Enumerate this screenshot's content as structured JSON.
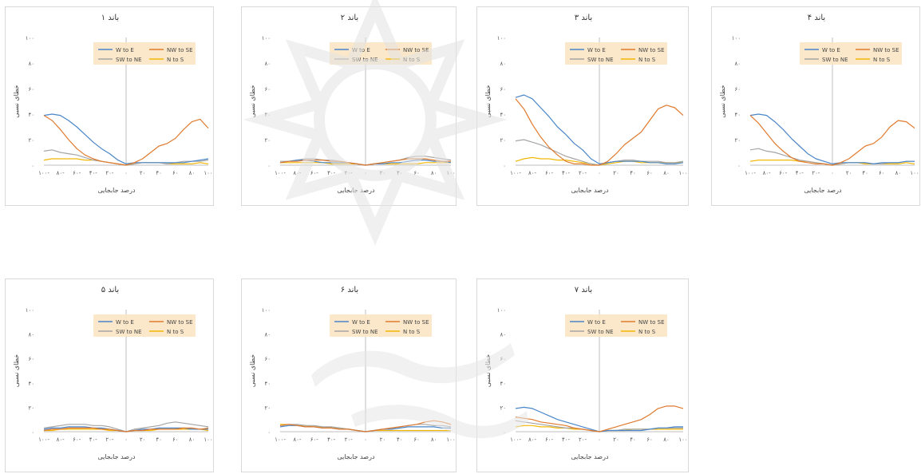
{
  "chart_data": [
    {
      "type": "line",
      "title": "باند ۱",
      "xlabel": "درصد جابجایی",
      "ylabel": "خطای نسبی",
      "x_ticks": [
        "۱۰۰-",
        "۸۰-",
        "۶۰-",
        "۴۰-",
        "۲۰-",
        "۰",
        "۲۰",
        "۴۰",
        "۶۰",
        "۸۰",
        "۱۰۰"
      ],
      "y_ticks": [
        "۰",
        "۲۰",
        "۴۰",
        "۶۰",
        "۸۰",
        "۱۰۰"
      ],
      "xlim": [
        -100,
        100
      ],
      "ylim": [
        0,
        100
      ],
      "x": [
        -100,
        -90,
        -80,
        -70,
        -60,
        -50,
        -40,
        -30,
        -20,
        -10,
        0,
        10,
        20,
        30,
        40,
        50,
        60,
        70,
        80,
        90,
        100
      ],
      "series": [
        {
          "name": "W to E",
          "color": "#4a86c8",
          "values": [
            39,
            40,
            39,
            35,
            30,
            24,
            18,
            13,
            9,
            4,
            1,
            2,
            2,
            2,
            2,
            2,
            2,
            2,
            3,
            4,
            5
          ]
        },
        {
          "name": "NW to SE",
          "color": "#e07a2e",
          "values": [
            39,
            35,
            28,
            20,
            13,
            8,
            5,
            3,
            2,
            1,
            0,
            2,
            5,
            10,
            15,
            17,
            21,
            28,
            34,
            36,
            29
          ]
        },
        {
          "name": "SW to NE",
          "color": "#a5a5a5",
          "values": [
            11,
            12,
            10,
            9,
            8,
            6,
            4,
            3,
            2,
            1,
            0,
            1,
            2,
            2,
            2,
            1,
            2,
            3,
            3,
            3,
            4
          ]
        },
        {
          "name": "N to S",
          "color": "#f2b705",
          "values": [
            4,
            5,
            5,
            5,
            5,
            4,
            4,
            3,
            2,
            1,
            0,
            1,
            2,
            2,
            2,
            1,
            1,
            1,
            1,
            2,
            1
          ]
        }
      ]
    },
    {
      "type": "line",
      "title": "باند ۲",
      "xlabel": "درصد جابجایی",
      "ylabel": "خطای نسبی",
      "x_ticks": [
        "۱۰۰-",
        "۸۰-",
        "۶۰-",
        "۴۰-",
        "۲۰-",
        "۰",
        "۲۰",
        "۴۰",
        "۶۰",
        "۸۰",
        "۱۰۰"
      ],
      "y_ticks": [
        "۰",
        "۲۰",
        "۴۰",
        "۶۰",
        "۸۰",
        "۱۰۰"
      ],
      "xlim": [
        -100,
        100
      ],
      "ylim": [
        0,
        100
      ],
      "x": [
        -100,
        -90,
        -80,
        -70,
        -60,
        -50,
        -40,
        -30,
        -20,
        -10,
        0,
        10,
        20,
        30,
        40,
        50,
        60,
        70,
        80,
        90,
        100
      ],
      "series": [
        {
          "name": "W to E",
          "color": "#4a86c8",
          "values": [
            2,
            3,
            4,
            4,
            3,
            2,
            2,
            2,
            2,
            1,
            0,
            1,
            1,
            2,
            2,
            3,
            4,
            4,
            3,
            3,
            2
          ]
        },
        {
          "name": "NW to SE",
          "color": "#e07a2e",
          "values": [
            2,
            3,
            3,
            4,
            4,
            4,
            3,
            3,
            2,
            1,
            0,
            1,
            2,
            3,
            4,
            5,
            5,
            5,
            4,
            3,
            3
          ]
        },
        {
          "name": "SW to NE",
          "color": "#a5a5a5",
          "values": [
            3,
            3,
            4,
            5,
            5,
            4,
            4,
            3,
            2,
            1,
            0,
            1,
            2,
            3,
            4,
            6,
            7,
            7,
            6,
            5,
            4
          ]
        },
        {
          "name": "N to S",
          "color": "#f2b705",
          "values": [
            2,
            2,
            2,
            2,
            2,
            2,
            1,
            1,
            1,
            1,
            0,
            1,
            1,
            1,
            1,
            1,
            1,
            2,
            2,
            2,
            2
          ]
        }
      ]
    },
    {
      "type": "line",
      "title": "باند ۳",
      "xlabel": "درصد جابجایی",
      "ylabel": "خطای نسبی",
      "x_ticks": [
        "۱۰۰-",
        "۸۰-",
        "۶۰-",
        "۴۰-",
        "۲۰-",
        "۰",
        "۲۰",
        "۴۰",
        "۶۰",
        "۸۰",
        "۱۰۰"
      ],
      "y_ticks": [
        "۰",
        "۲۰",
        "۴۰",
        "۶۰",
        "۸۰",
        "۱۰۰"
      ],
      "xlim": [
        -100,
        100
      ],
      "ylim": [
        0,
        100
      ],
      "x": [
        -100,
        -90,
        -80,
        -70,
        -60,
        -50,
        -40,
        -30,
        -20,
        -10,
        0,
        10,
        20,
        30,
        40,
        50,
        60,
        70,
        80,
        90,
        100
      ],
      "series": [
        {
          "name": "W to E",
          "color": "#4a86c8",
          "values": [
            53,
            55,
            52,
            45,
            38,
            30,
            24,
            17,
            12,
            5,
            1,
            2,
            3,
            3,
            3,
            3,
            2,
            2,
            1,
            1,
            2
          ]
        },
        {
          "name": "NW to SE",
          "color": "#e07a2e",
          "values": [
            52,
            44,
            32,
            22,
            14,
            8,
            3,
            1,
            1,
            0,
            0,
            3,
            9,
            16,
            21,
            26,
            35,
            44,
            47,
            45,
            39
          ]
        },
        {
          "name": "SW to NE",
          "color": "#a5a5a5",
          "values": [
            19,
            20,
            18,
            16,
            13,
            10,
            7,
            5,
            3,
            1,
            0,
            2,
            3,
            4,
            4,
            3,
            3,
            3,
            2,
            2,
            3
          ]
        },
        {
          "name": "N to S",
          "color": "#f2b705",
          "values": [
            3,
            5,
            6,
            5,
            5,
            4,
            4,
            3,
            2,
            1,
            0,
            1,
            2,
            3,
            3,
            2,
            2,
            2,
            2,
            2,
            2
          ]
        }
      ]
    },
    {
      "type": "line",
      "title": "باند ۴",
      "xlabel": "درصد جابجایی",
      "ylabel": "خطای نسبی",
      "x_ticks": [
        "۱۰۰-",
        "۸۰-",
        "۶۰-",
        "۴۰-",
        "۲۰-",
        "۰",
        "۲۰",
        "۴۰",
        "۶۰",
        "۸۰",
        "۱۰۰"
      ],
      "y_ticks": [
        "۰",
        "۲۰",
        "۴۰",
        "۶۰",
        "۸۰",
        "۱۰۰"
      ],
      "xlim": [
        -100,
        100
      ],
      "ylim": [
        0,
        100
      ],
      "x": [
        -100,
        -90,
        -80,
        -70,
        -60,
        -50,
        -40,
        -30,
        -20,
        -10,
        0,
        10,
        20,
        30,
        40,
        50,
        60,
        70,
        80,
        90,
        100
      ],
      "series": [
        {
          "name": "W to E",
          "color": "#4a86c8",
          "values": [
            39,
            40,
            39,
            34,
            28,
            21,
            15,
            9,
            5,
            3,
            1,
            2,
            2,
            2,
            2,
            1,
            2,
            2,
            2,
            3,
            3
          ]
        },
        {
          "name": "NW to SE",
          "color": "#e07a2e",
          "values": [
            39,
            33,
            25,
            17,
            11,
            6,
            3,
            2,
            1,
            1,
            0,
            2,
            5,
            10,
            15,
            17,
            22,
            30,
            35,
            34,
            29
          ]
        },
        {
          "name": "SW to NE",
          "color": "#a5a5a5",
          "values": [
            12,
            13,
            11,
            10,
            8,
            6,
            4,
            3,
            2,
            1,
            0,
            1,
            2,
            2,
            2,
            1,
            1,
            2,
            2,
            3,
            3
          ]
        },
        {
          "name": "N to S",
          "color": "#f2b705",
          "values": [
            3,
            4,
            4,
            4,
            4,
            4,
            3,
            3,
            2,
            1,
            0,
            1,
            2,
            2,
            1,
            1,
            1,
            1,
            1,
            2,
            1
          ]
        }
      ]
    },
    {
      "type": "line",
      "title": "باند ۵",
      "xlabel": "درصد جابجایی",
      "ylabel": "خطای نسبی",
      "x_ticks": [
        "۱۰۰-",
        "۸۰-",
        "۶۰-",
        "۴۰-",
        "۲۰-",
        "۰",
        "۲۰",
        "۴۰",
        "۶۰",
        "۸۰",
        "۱۰۰"
      ],
      "y_ticks": [
        "۰",
        "۲۰",
        "۴۰",
        "۶۰",
        "۸۰",
        "۱۰۰"
      ],
      "xlim": [
        -100,
        100
      ],
      "ylim": [
        0,
        100
      ],
      "x": [
        -100,
        -90,
        -80,
        -70,
        -60,
        -50,
        -40,
        -30,
        -20,
        -10,
        0,
        10,
        20,
        30,
        40,
        50,
        60,
        70,
        80,
        90,
        100
      ],
      "series": [
        {
          "name": "W to E",
          "color": "#4a86c8",
          "values": [
            2,
            3,
            3,
            4,
            4,
            4,
            3,
            3,
            2,
            1,
            0,
            1,
            2,
            2,
            3,
            3,
            3,
            3,
            2,
            2,
            2
          ]
        },
        {
          "name": "NW to SE",
          "color": "#e07a2e",
          "values": [
            1,
            2,
            2,
            3,
            3,
            3,
            3,
            2,
            2,
            1,
            0,
            1,
            1,
            2,
            2,
            2,
            2,
            3,
            3,
            2,
            3
          ]
        },
        {
          "name": "SW to NE",
          "color": "#a5a5a5",
          "values": [
            3,
            4,
            5,
            6,
            6,
            6,
            5,
            5,
            4,
            2,
            0,
            2,
            3,
            4,
            5,
            7,
            8,
            7,
            6,
            5,
            4
          ]
        },
        {
          "name": "N to S",
          "color": "#f2b705",
          "values": [
            1,
            1,
            2,
            2,
            2,
            2,
            2,
            2,
            1,
            1,
            0,
            1,
            1,
            1,
            2,
            2,
            2,
            2,
            2,
            2,
            1
          ]
        }
      ]
    },
    {
      "type": "line",
      "title": "باند ۶",
      "xlabel": "درصد جابجایی",
      "ylabel": "خطای نسبی",
      "x_ticks": [
        "۱۰۰-",
        "۸۰-",
        "۶۰-",
        "۴۰-",
        "۲۰-",
        "۰",
        "۲۰",
        "۴۰",
        "۶۰",
        "۸۰",
        "۱۰۰"
      ],
      "y_ticks": [
        "۰",
        "۲۰",
        "۴۰",
        "۶۰",
        "۸۰",
        "۱۰۰"
      ],
      "xlim": [
        -100,
        100
      ],
      "ylim": [
        0,
        100
      ],
      "x": [
        -100,
        -90,
        -80,
        -70,
        -60,
        -50,
        -40,
        -30,
        -20,
        -10,
        0,
        10,
        20,
        30,
        40,
        50,
        60,
        70,
        80,
        90,
        100
      ],
      "series": [
        {
          "name": "W to E",
          "color": "#4a86c8",
          "values": [
            4,
            5,
            5,
            4,
            4,
            3,
            3,
            2,
            2,
            1,
            0,
            1,
            2,
            2,
            3,
            4,
            4,
            4,
            4,
            3,
            3
          ]
        },
        {
          "name": "NW to SE",
          "color": "#e07a2e",
          "values": [
            5,
            6,
            5,
            4,
            4,
            3,
            3,
            2,
            2,
            1,
            0,
            1,
            2,
            3,
            4,
            5,
            6,
            8,
            9,
            8,
            6
          ]
        },
        {
          "name": "SW to NE",
          "color": "#a5a5a5",
          "values": [
            5,
            6,
            6,
            5,
            5,
            4,
            4,
            3,
            2,
            1,
            0,
            1,
            2,
            3,
            4,
            5,
            6,
            6,
            5,
            5,
            4
          ]
        },
        {
          "name": "N to S",
          "color": "#f2b705",
          "values": [
            6,
            6,
            5,
            5,
            4,
            4,
            3,
            3,
            2,
            1,
            0,
            1,
            1,
            1,
            1,
            1,
            1,
            1,
            1,
            1,
            1
          ]
        }
      ]
    },
    {
      "type": "line",
      "title": "باند ۷",
      "xlabel": "درصد جابجایی",
      "ylabel": "خطای نسبی",
      "x_ticks": [
        "۱۰۰-",
        "۸۰-",
        "۶۰-",
        "۴۰-",
        "۲۰-",
        "۰",
        "۲۰",
        "۴۰",
        "۶۰",
        "۸۰",
        "۱۰۰"
      ],
      "y_ticks": [
        "۰",
        "۲۰",
        "۴۰",
        "۶۰",
        "۸۰",
        "۱۰۰"
      ],
      "xlim": [
        -100,
        100
      ],
      "ylim": [
        0,
        100
      ],
      "x": [
        -100,
        -90,
        -80,
        -70,
        -60,
        -50,
        -40,
        -30,
        -20,
        -10,
        0,
        10,
        20,
        30,
        40,
        50,
        60,
        70,
        80,
        90,
        100
      ],
      "series": [
        {
          "name": "W to E",
          "color": "#4a86c8",
          "values": [
            19,
            20,
            19,
            16,
            13,
            10,
            8,
            6,
            4,
            2,
            0,
            1,
            1,
            1,
            1,
            1,
            2,
            3,
            3,
            4,
            4
          ]
        },
        {
          "name": "NW to SE",
          "color": "#e07a2e",
          "values": [
            12,
            11,
            10,
            8,
            7,
            6,
            5,
            3,
            2,
            1,
            0,
            2,
            4,
            6,
            8,
            10,
            14,
            19,
            21,
            21,
            19
          ]
        },
        {
          "name": "SW to NE",
          "color": "#a5a5a5",
          "values": [
            9,
            8,
            7,
            6,
            5,
            4,
            3,
            3,
            2,
            1,
            0,
            1,
            1,
            2,
            2,
            2,
            2,
            3,
            3,
            3,
            3
          ]
        },
        {
          "name": "N to S",
          "color": "#f2b705",
          "values": [
            4,
            5,
            5,
            4,
            4,
            3,
            3,
            2,
            2,
            1,
            0,
            1,
            1,
            1,
            2,
            2,
            2,
            2,
            2,
            2,
            2
          ]
        }
      ]
    }
  ]
}
